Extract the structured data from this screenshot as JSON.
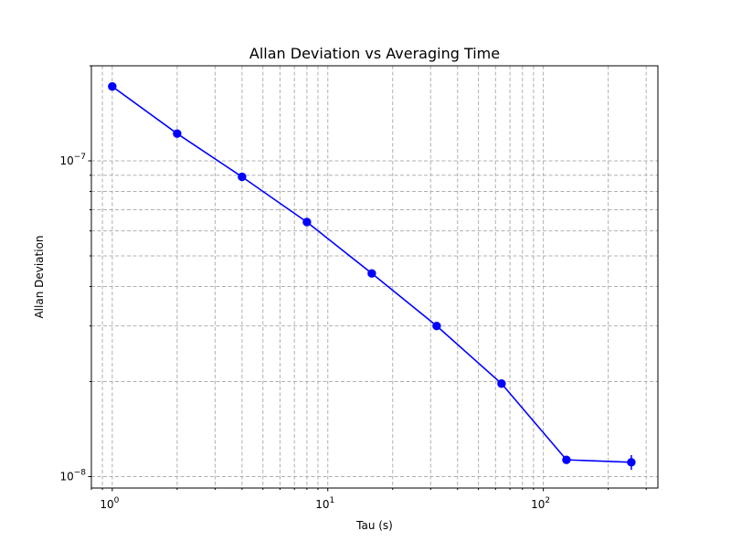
{
  "chart_data": {
    "type": "line",
    "title": "Allan Deviation vs Averaging Time",
    "xlabel": "Tau (s)",
    "ylabel": "Allan Deviation",
    "xscale": "log",
    "yscale": "log",
    "xlim": [
      0.8,
      340
    ],
    "ylim": [
      9.2e-09,
      2e-07
    ],
    "grid": "on (major and minor, dashed)",
    "x_ticks": [
      {
        "value": 1,
        "base": "10",
        "exp": "0"
      },
      {
        "value": 10,
        "base": "10",
        "exp": "1"
      },
      {
        "value": 100,
        "base": "10",
        "exp": "2"
      }
    ],
    "y_ticks": [
      {
        "value": 1e-08,
        "base": "10",
        "exp": "−8"
      },
      {
        "value": 1e-07,
        "base": "10",
        "exp": "−7"
      }
    ],
    "series": [
      {
        "color": "#0000ff",
        "marker": "circle",
        "x": [
          1,
          2,
          4,
          8,
          16,
          32,
          64,
          128,
          256
        ],
        "y": [
          1.72e-07,
          1.22e-07,
          8.9e-08,
          6.4e-08,
          4.4e-08,
          3e-08,
          1.97e-08,
          1.13e-08,
          1.11e-08
        ],
        "yerr": [
          0.0,
          0.0,
          0.0,
          0.0,
          0.0,
          0.0,
          0.0,
          3e-10,
          6e-10
        ]
      }
    ]
  }
}
